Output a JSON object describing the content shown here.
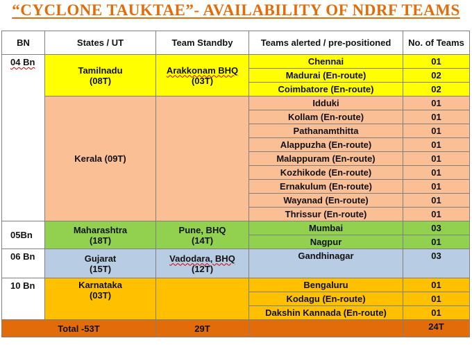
{
  "title": "“CYCLONE TAUKTAE”- AVAILABILITY OF  NDRF  TEAMS",
  "headers": {
    "bn": "BN",
    "states": "States / UT",
    "standby": "Team Standby",
    "alerted": "Teams alerted / pre-positioned",
    "count": "No. of Teams"
  },
  "groups": {
    "bn04": {
      "bn": "04 Bn",
      "tn_state": "Tamilnadu",
      "tn_teams": "(08T)",
      "tn_standby": "Arakkonam BHQ",
      "tn_standby_teams": "(03T)",
      "tn_locations": [
        {
          "place": "Chennai",
          "teams": "01"
        },
        {
          "place": "Madurai (En-route)",
          "teams": "02"
        },
        {
          "place": "Coimbatore (En-route)",
          "teams": "02"
        }
      ],
      "kerala_state": "Kerala (09T)",
      "kerala_locations": [
        {
          "place": "Idduki",
          "teams": "01"
        },
        {
          "place": "Kollam (En-route)",
          "teams": "01"
        },
        {
          "place": "Pathanamthitta",
          "teams": "01"
        },
        {
          "place": "Alappuzha (En-route)",
          "teams": "01"
        },
        {
          "place": "Malappuram (En-route)",
          "teams": "01"
        },
        {
          "place": "Kozhikode (En-route)",
          "teams": "01"
        },
        {
          "place": "Ernakulum (En-route)",
          "teams": "01"
        },
        {
          "place": "Wayanad (En-route)",
          "teams": "01"
        },
        {
          "place": "Thrissur (En-route)",
          "teams": "01"
        }
      ]
    },
    "bn05": {
      "bn": "05Bn",
      "state": "Maharashtra",
      "state_teams": "(18T)",
      "standby": "Pune, BHQ",
      "standby_teams": "(14T)",
      "locations": [
        {
          "place": "Mumbai",
          "teams": "03"
        },
        {
          "place": "Nagpur",
          "teams": "01"
        }
      ]
    },
    "bn06": {
      "bn": "06 Bn",
      "state": "Gujarat",
      "state_teams": "(15T)",
      "standby": "Vadodara, BHQ",
      "standby_teams": "(12T)",
      "locations": [
        {
          "place": "Gandhinagar",
          "teams": "03"
        }
      ]
    },
    "bn10": {
      "bn": "10 Bn",
      "state": "Karnataka",
      "state_teams": "(03T)",
      "locations": [
        {
          "place": "Bengaluru",
          "teams": "01"
        },
        {
          "place": "Kodagu (En-route)",
          "teams": "01"
        },
        {
          "place": "Dakshin Kannada (En-route)",
          "teams": "01"
        }
      ]
    }
  },
  "totals": {
    "label": "Total -53T",
    "standby": "29T",
    "teams": "24T"
  },
  "colors": {
    "title": "#e36c0a",
    "tamilnadu": "#ffff00",
    "kerala": "#fbbf96",
    "maharashtra": "#92d050",
    "gujarat": "#b8cce4",
    "karnataka": "#ffc000",
    "total": "#e36c0a"
  }
}
